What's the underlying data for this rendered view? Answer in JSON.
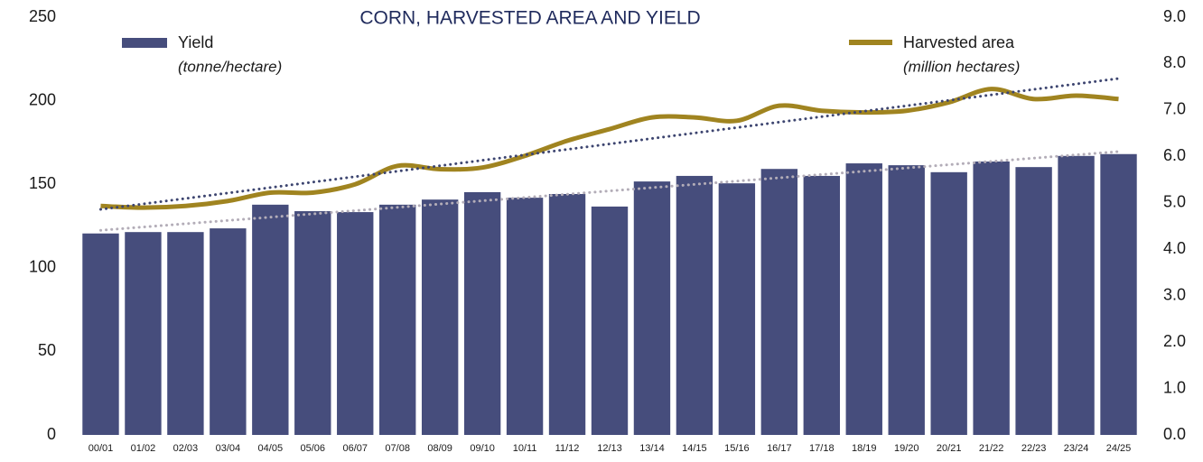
{
  "chart_data": {
    "type": "bar_line",
    "title": "CORN, HARVESTED AREA AND YIELD",
    "categories": [
      "00/01",
      "01/02",
      "02/03",
      "03/04",
      "04/05",
      "05/06",
      "06/07",
      "07/08",
      "08/09",
      "09/10",
      "10/11",
      "11/12",
      "12/13",
      "13/14",
      "14/15",
      "15/16",
      "16/17",
      "17/18",
      "18/19",
      "19/20",
      "20/21",
      "21/22",
      "22/23",
      "23/24",
      "24/25"
    ],
    "series": [
      {
        "name": "Yield",
        "unit": "(tonne/hectare)",
        "type": "bar",
        "axis": "y2",
        "color": "#464d7c",
        "trendline": true,
        "trend_color": "#b3adb8",
        "values": [
          4.34,
          4.37,
          4.37,
          4.45,
          4.96,
          4.82,
          4.8,
          4.96,
          5.07,
          5.23,
          5.11,
          5.19,
          4.92,
          5.46,
          5.58,
          5.42,
          5.73,
          5.58,
          5.85,
          5.81,
          5.66,
          5.89,
          5.77,
          6.01,
          6.05
        ]
      },
      {
        "name": "Harvested area",
        "unit": "(million hectares)",
        "type": "line",
        "axis": "y",
        "color": "#a08420",
        "trendline": true,
        "trend_color": "#3d4570",
        "values": [
          137,
          136,
          137,
          140,
          145,
          145,
          150,
          161,
          159,
          160,
          167,
          176,
          183,
          190,
          190,
          188,
          197,
          194,
          193,
          194,
          199,
          207,
          201,
          203,
          201
        ]
      }
    ],
    "ylim": [
      0,
      250
    ],
    "yticks": [
      0,
      50,
      100,
      150,
      200,
      250
    ],
    "y2lim": [
      0,
      9
    ],
    "y2ticks": [
      {
        "value": 0,
        "label": "0.0"
      },
      {
        "value": 1,
        "label": "1.0"
      },
      {
        "value": 2,
        "label": "2.0"
      },
      {
        "value": 3,
        "label": "3.0"
      },
      {
        "value": 4,
        "label": "4.0"
      },
      {
        "value": 5,
        "label": "5.0"
      },
      {
        "value": 6,
        "label": "6.0"
      },
      {
        "value": 7,
        "label": "7.0"
      },
      {
        "value": 8,
        "label": "8.0"
      },
      {
        "value": 9,
        "label": "9.0"
      }
    ],
    "grid": false
  }
}
